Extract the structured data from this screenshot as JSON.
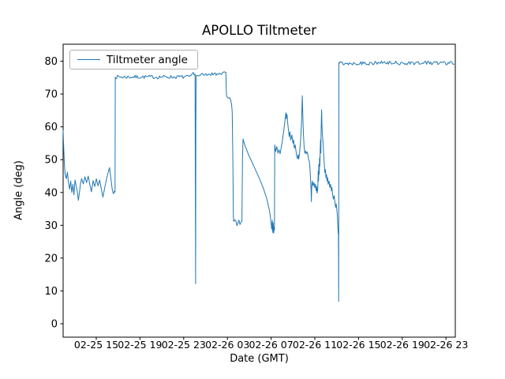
{
  "chart_data": {
    "type": "line",
    "title": "APOLLO Tiltmeter",
    "xlabel": "Date (GMT)",
    "ylabel": "Angle (deg)",
    "legend": [
      "Tiltmeter angle"
    ],
    "legend_position": "upper left",
    "line_color": "#1f77b4",
    "grid": false,
    "x_axis": {
      "unit": "hours since 02-25 00:00 GMT",
      "range": [
        11.97,
        47.8
      ],
      "tick_hours": [
        15,
        19,
        23,
        27,
        31,
        35,
        39,
        43,
        47
      ],
      "tick_labels": [
        "02-25 15",
        "02-25 19",
        "02-25 23",
        "02-26 03",
        "02-26 07",
        "02-26 11",
        "02-26 15",
        "02-26 19",
        "02-26 23"
      ]
    },
    "y_axis": {
      "range": [
        -4.1,
        85.2
      ],
      "ticks": [
        0,
        10,
        20,
        30,
        40,
        50,
        60,
        70,
        80
      ]
    },
    "series": [
      {
        "name": "Tiltmeter angle",
        "segments": [
          {
            "type": "path",
            "points": [
              [
                11.97,
                59
              ],
              [
                12.02,
                54
              ],
              [
                12.08,
                48.5
              ],
              [
                12.16,
                45.3
              ],
              [
                12.26,
                44.2
              ],
              [
                12.36,
                46.2
              ],
              [
                12.46,
                43
              ],
              [
                12.56,
                41
              ],
              [
                12.66,
                43.5
              ],
              [
                12.76,
                40
              ],
              [
                12.86,
                42.5
              ],
              [
                12.96,
                39.3
              ],
              [
                13.06,
                43.8
              ],
              [
                13.16,
                42
              ],
              [
                13.26,
                40.5
              ],
              [
                13.36,
                37.6
              ],
              [
                13.46,
                40
              ],
              [
                13.56,
                42.8
              ],
              [
                13.66,
                44.2
              ],
              [
                13.81,
                42.6
              ],
              [
                13.96,
                44.8
              ],
              [
                14.11,
                43
              ],
              [
                14.26,
                45
              ],
              [
                14.41,
                42.5
              ],
              [
                14.56,
                40.2
              ],
              [
                14.71,
                43.6
              ],
              [
                14.86,
                41.8
              ],
              [
                15.01,
                44.2
              ],
              [
                15.16,
                42
              ],
              [
                15.31,
                43.8
              ],
              [
                15.46,
                41
              ],
              [
                15.61,
                38.6
              ],
              [
                15.76,
                41.2
              ],
              [
                15.91,
                43.6
              ],
              [
                16.06,
                45.8
              ],
              [
                16.21,
                47.6
              ],
              [
                16.33,
                44.5
              ],
              [
                16.46,
                41
              ],
              [
                16.56,
                39.6
              ],
              [
                16.66,
                40.4
              ],
              [
                16.72,
                40.1
              ],
              [
                16.74,
                75.2
              ]
            ]
          },
          {
            "type": "noise",
            "h0": 16.76,
            "h1": 23.7,
            "a0": 75.2,
            "a1": 75.2,
            "amp": 0.55,
            "seed": 7
          },
          {
            "type": "path",
            "points": [
              [
                23.78,
                76.2
              ],
              [
                23.88,
                76.6
              ],
              [
                23.96,
                75.8
              ],
              [
                24.04,
                76.1
              ],
              [
                24.07,
                40
              ],
              [
                24.09,
                12.2
              ],
              [
                24.11,
                60
              ],
              [
                24.13,
                75.6
              ]
            ]
          },
          {
            "type": "noise",
            "h0": 24.16,
            "h1": 26.82,
            "a0": 75.7,
            "a1": 76.4,
            "amp": 0.5,
            "seed": 21
          },
          {
            "type": "path",
            "points": [
              [
                26.86,
                76.6
              ],
              [
                26.89,
                72
              ],
              [
                26.92,
                69.4
              ],
              [
                27.0,
                69.0
              ],
              [
                27.1,
                68.7
              ],
              [
                27.2,
                68.9
              ],
              [
                27.3,
                68.2
              ],
              [
                27.38,
                66.8
              ],
              [
                27.44,
                64.5
              ],
              [
                27.47,
                57
              ],
              [
                27.49,
                52
              ],
              [
                27.51,
                45
              ],
              [
                27.54,
                33.5
              ],
              [
                27.57,
                31.2
              ]
            ]
          },
          {
            "type": "noise",
            "h0": 27.6,
            "h1": 28.33,
            "a0": 31.2,
            "a1": 30.6,
            "amp": 1.15,
            "seed": 33
          },
          {
            "type": "path",
            "points": [
              [
                28.38,
                50
              ],
              [
                28.43,
                56.3
              ],
              [
                28.52,
                55.2
              ],
              [
                28.64,
                54
              ],
              [
                28.76,
                53
              ],
              [
                28.88,
                52
              ],
              [
                29.0,
                51
              ],
              [
                29.12,
                50.2
              ],
              [
                29.24,
                49.3
              ],
              [
                29.36,
                48.4
              ],
              [
                29.48,
                47.6
              ],
              [
                29.6,
                46.7
              ],
              [
                29.72,
                45.8
              ],
              [
                29.84,
                44.9
              ],
              [
                29.96,
                44
              ],
              [
                30.08,
                43
              ],
              [
                30.2,
                42
              ],
              [
                30.32,
                41
              ],
              [
                30.44,
                39.8
              ],
              [
                30.56,
                38.6
              ],
              [
                30.66,
                37.2
              ],
              [
                30.76,
                35.8
              ],
              [
                30.86,
                34.2
              ],
              [
                30.94,
                32.3
              ],
              [
                31.0,
                30.5
              ],
              [
                31.06,
                28.8
              ],
              [
                31.11,
                31.6
              ],
              [
                31.15,
                27.8
              ],
              [
                31.19,
                30.8
              ],
              [
                31.23,
                27.6
              ],
              [
                31.28,
                29.5
              ],
              [
                31.3,
                28.5
              ],
              [
                31.33,
                54.5
              ],
              [
                31.42,
                52.5
              ],
              [
                31.52,
                54
              ],
              [
                31.62,
                52
              ],
              [
                31.72,
                53
              ],
              [
                31.82,
                51.8
              ],
              [
                31.92,
                53.5
              ],
              [
                32.02,
                55.5
              ],
              [
                32.12,
                58
              ],
              [
                32.22,
                60.5
              ],
              [
                32.3,
                62.8
              ],
              [
                32.35,
                64.3
              ],
              [
                32.4,
                62.5
              ],
              [
                32.45,
                63.8
              ],
              [
                32.52,
                61
              ],
              [
                32.6,
                58.5
              ],
              [
                32.66,
                57
              ],
              [
                32.72,
                58.5
              ],
              [
                32.8,
                56
              ],
              [
                32.9,
                57.5
              ],
              [
                33.0,
                55
              ],
              [
                33.06,
                56
              ],
              [
                33.12,
                53.5
              ],
              [
                33.2,
                54.5
              ],
              [
                33.28,
                52.5
              ],
              [
                33.35,
                51
              ],
              [
                33.41,
                50.3
              ],
              [
                33.47,
                51.5
              ],
              [
                33.53,
                50.2
              ],
              [
                33.6,
                52
              ],
              [
                33.68,
                55
              ],
              [
                33.74,
                58
              ],
              [
                33.79,
                62
              ],
              [
                33.82,
                66
              ],
              [
                33.85,
                69.5
              ],
              [
                33.89,
                65
              ],
              [
                33.93,
                60
              ],
              [
                33.97,
                57
              ],
              [
                34.02,
                54
              ],
              [
                34.08,
                52
              ],
              [
                34.14,
                52.6
              ],
              [
                34.21,
                51.8
              ],
              [
                34.28,
                52.4
              ],
              [
                34.36,
                51.6
              ],
              [
                34.43,
                50
              ],
              [
                34.5,
                49.4
              ],
              [
                34.56,
                47
              ],
              [
                34.61,
                44
              ],
              [
                34.65,
                41
              ],
              [
                34.68,
                37.2
              ],
              [
                34.72,
                42
              ],
              [
                34.77,
                43.5
              ],
              [
                34.84,
                42
              ],
              [
                34.92,
                43
              ],
              [
                34.99,
                41.5
              ],
              [
                35.06,
                42.5
              ],
              [
                35.12,
                40.5
              ],
              [
                35.17,
                41.8
              ],
              [
                35.22,
                39.8
              ],
              [
                35.27,
                41
              ],
              [
                35.31,
                46.5
              ],
              [
                35.34,
                43.5
              ],
              [
                35.37,
                48.5
              ],
              [
                35.4,
                45.5
              ],
              [
                35.43,
                50.5
              ],
              [
                35.46,
                48
              ],
              [
                35.49,
                53
              ],
              [
                35.52,
                56
              ],
              [
                35.55,
                52
              ],
              [
                35.57,
                58
              ],
              [
                35.59,
                61.5
              ],
              [
                35.62,
                65.2
              ],
              [
                35.65,
                61
              ],
              [
                35.68,
                58
              ],
              [
                35.72,
                56.5
              ],
              [
                35.77,
                54
              ],
              [
                35.82,
                51
              ],
              [
                35.87,
                48.5
              ],
              [
                35.92,
                46
              ],
              [
                35.97,
                47
              ],
              [
                36.02,
                44.5
              ],
              [
                36.07,
                45.5
              ],
              [
                36.12,
                43.5
              ],
              [
                36.17,
                44.5
              ],
              [
                36.22,
                42.5
              ],
              [
                36.3,
                43.5
              ],
              [
                36.37,
                41.5
              ],
              [
                36.44,
                42.5
              ],
              [
                36.52,
                40.5
              ],
              [
                36.57,
                41.5
              ],
              [
                36.62,
                39.5
              ],
              [
                36.7,
                38
              ],
              [
                36.77,
                39
              ],
              [
                36.84,
                37
              ],
              [
                36.9,
                35.5
              ],
              [
                36.96,
                36.5
              ],
              [
                37.02,
                34.5
              ],
              [
                37.07,
                32.5
              ],
              [
                37.11,
                29.6
              ],
              [
                37.14,
                27.5
              ],
              [
                37.16,
                29
              ],
              [
                37.18,
                6.8
              ],
              [
                37.2,
                79.6
              ]
            ]
          },
          {
            "type": "noise",
            "h0": 37.23,
            "h1": 47.76,
            "a0": 79.4,
            "a1": 79.5,
            "amp": 0.6,
            "seed": 55
          }
        ]
      }
    ]
  }
}
